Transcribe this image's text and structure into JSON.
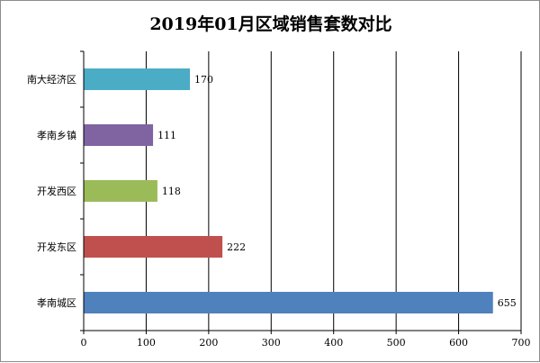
{
  "chart_data": {
    "type": "bar",
    "orientation": "horizontal",
    "title": "2019年01月区域销售套数对比",
    "categories": [
      "南大经济区",
      "孝南乡镇",
      "开发西区",
      "开发东区",
      "孝南城区"
    ],
    "values": [
      170,
      111,
      118,
      222,
      655
    ],
    "colors": [
      "#4bacc6",
      "#8064a2",
      "#9bbb59",
      "#c0504d",
      "#4f81bd"
    ],
    "xlim": [
      0,
      700
    ],
    "xticks": [
      0,
      100,
      200,
      300,
      400,
      500,
      600,
      700
    ],
    "xlabel": "",
    "ylabel": "",
    "grid": "vertical",
    "legend": "none"
  }
}
